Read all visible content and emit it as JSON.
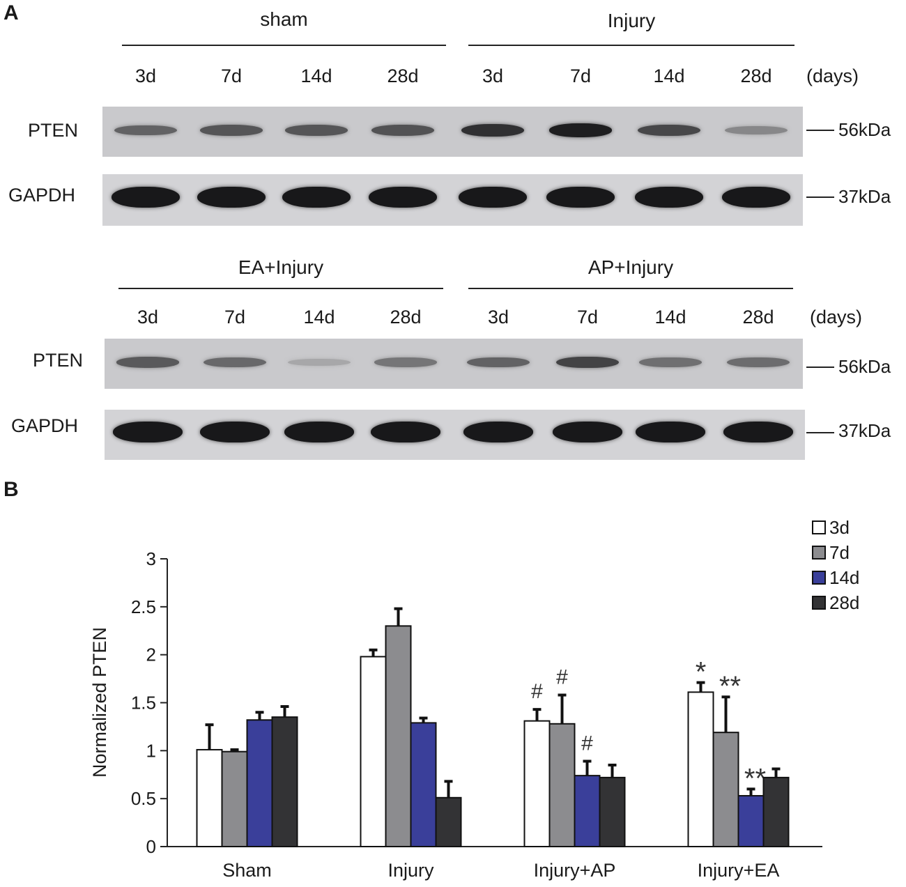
{
  "panel_a": {
    "letter": "A",
    "blot1": {
      "groups": [
        "sham",
        "Injury"
      ],
      "lanes": [
        "3d",
        "7d",
        "14d",
        "28d",
        "3d",
        "7d",
        "14d",
        "28d"
      ],
      "days_label": "(days)",
      "rows": [
        {
          "label": "PTEN",
          "mw": "56kDa",
          "intensities": [
            0.55,
            0.62,
            0.62,
            0.64,
            0.82,
            0.92,
            0.7,
            0.35
          ]
        },
        {
          "label": "GAPDH",
          "mw": "37kDa",
          "intensities": [
            0.95,
            0.95,
            0.95,
            0.95,
            0.95,
            0.95,
            0.95,
            0.95
          ]
        }
      ]
    },
    "blot2": {
      "groups": [
        "EA+Injury",
        "AP+Injury"
      ],
      "lanes": [
        "3d",
        "7d",
        "14d",
        "28d",
        "3d",
        "7d",
        "14d",
        "28d"
      ],
      "days_label": "(days)",
      "rows": [
        {
          "label": "PTEN",
          "mw": "56kDa",
          "intensities": [
            0.6,
            0.52,
            0.18,
            0.45,
            0.55,
            0.72,
            0.48,
            0.5
          ]
        },
        {
          "label": "GAPDH",
          "mw": "37kDa",
          "intensities": [
            0.95,
            0.95,
            0.95,
            0.95,
            0.95,
            0.95,
            0.95,
            0.95
          ]
        }
      ]
    }
  },
  "panel_b": {
    "letter": "B"
  },
  "chart_data": {
    "type": "bar",
    "title": "",
    "xlabel": "",
    "ylabel": "Normalized PTEN",
    "ylim": [
      0,
      3
    ],
    "yticks": [
      "0",
      "0.5",
      "1",
      "1.5",
      "2",
      "2.5",
      "3"
    ],
    "categories": [
      "Sham",
      "Injury",
      "Injury+AP",
      "Injury+EA"
    ],
    "legend_position": "top-right",
    "series": [
      {
        "name": "3d",
        "color": "#ffffff",
        "values": [
          1.01,
          1.98,
          1.31,
          1.61
        ],
        "errors": [
          0.26,
          0.07,
          0.12,
          0.1
        ],
        "annotations": [
          "",
          "",
          "#",
          "*"
        ]
      },
      {
        "name": "7d",
        "color": "#8c8c8f",
        "values": [
          0.99,
          2.3,
          1.28,
          1.19
        ],
        "errors": [
          0.02,
          0.18,
          0.3,
          0.37
        ],
        "annotations": [
          "",
          "",
          "#",
          "**"
        ]
      },
      {
        "name": "14d",
        "color": "#3a3f9a",
        "values": [
          1.32,
          1.29,
          0.74,
          0.53
        ],
        "errors": [
          0.08,
          0.05,
          0.15,
          0.07
        ],
        "annotations": [
          "",
          "",
          "#",
          "**"
        ]
      },
      {
        "name": "28d",
        "color": "#333335",
        "values": [
          1.35,
          0.51,
          0.72,
          0.72
        ],
        "errors": [
          0.11,
          0.17,
          0.13,
          0.09
        ],
        "annotations": [
          "",
          "",
          "",
          ""
        ]
      }
    ]
  }
}
